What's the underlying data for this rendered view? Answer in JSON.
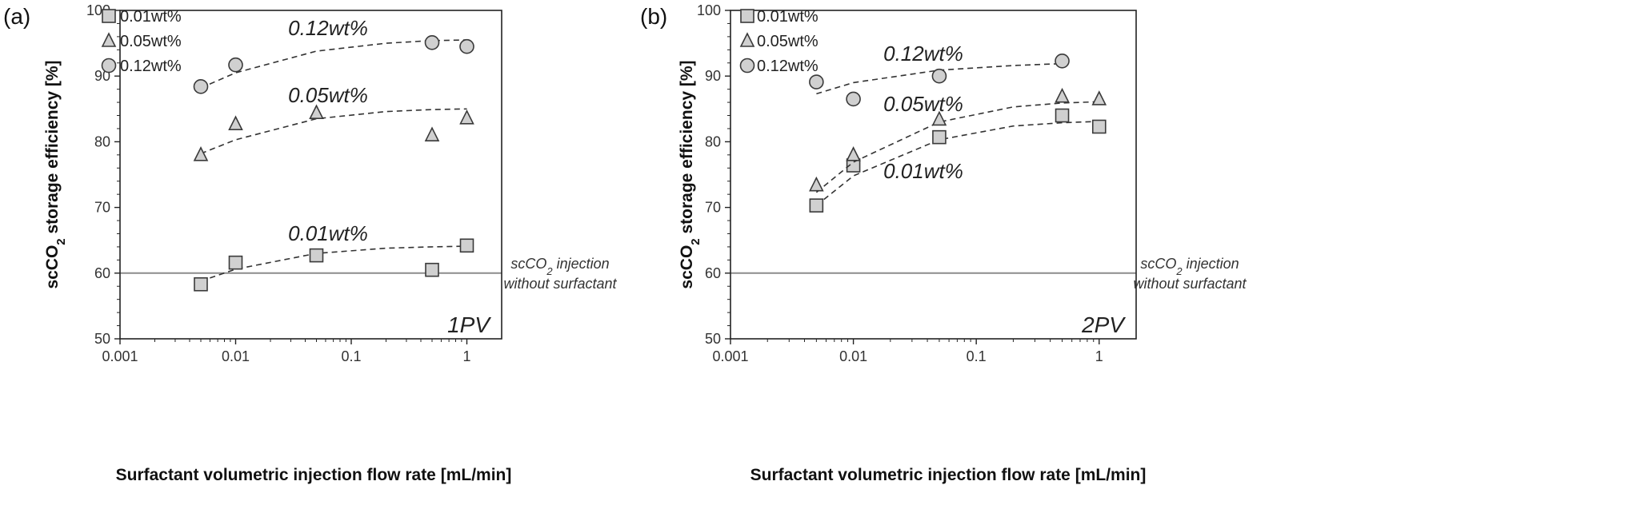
{
  "chart_data": [
    {
      "type": "scatter",
      "panel": "(a)",
      "pv_label": "1PV",
      "xlabel": "Surfactant volumetric injection flow rate [mL/min]",
      "ylabel_parts": [
        "scCO",
        "2",
        " storage efficiency [%]"
      ],
      "x_scale": "log",
      "xlim": [
        0.001,
        2
      ],
      "ylim": [
        50,
        100
      ],
      "x_ticks": [
        "0.001",
        "0.01",
        "0.1",
        "1"
      ],
      "y_ticks": [
        "50",
        "60",
        "70",
        "80",
        "90",
        "100"
      ],
      "reference_line": {
        "y": 60,
        "label_line1_parts": [
          "scCO",
          "2",
          " injection"
        ],
        "label_line2": "without surfactant"
      },
      "legend": [
        "0.01wt%",
        "0.05wt%",
        "0.12wt%"
      ],
      "series": [
        {
          "name": "0.01wt%",
          "marker": "square",
          "x": [
            0.005,
            0.01,
            0.05,
            0.5,
            1
          ],
          "y": [
            58.3,
            61.6,
            62.7,
            60.5,
            64.2
          ],
          "fit_label": "0.01wt%",
          "fit": [
            [
              0.005,
              58.8
            ],
            [
              0.01,
              60.6
            ],
            [
              0.05,
              63.0
            ],
            [
              0.2,
              63.8
            ],
            [
              0.5,
              64.0
            ],
            [
              1,
              64.1
            ]
          ]
        },
        {
          "name": "0.05wt%",
          "marker": "triangle",
          "x": [
            0.005,
            0.01,
            0.05,
            0.5,
            1
          ],
          "y": [
            78.0,
            82.7,
            84.4,
            81.0,
            83.6
          ],
          "fit_label": "0.05wt%",
          "fit": [
            [
              0.005,
              78.2
            ],
            [
              0.01,
              80.3
            ],
            [
              0.05,
              83.5
            ],
            [
              0.2,
              84.6
            ],
            [
              0.5,
              84.9
            ],
            [
              1,
              85.0
            ]
          ]
        },
        {
          "name": "0.12wt%",
          "marker": "circle",
          "x": [
            0.005,
            0.01,
            0.5,
            1
          ],
          "y": [
            88.4,
            91.7,
            95.1,
            94.5
          ],
          "fit_label": "0.12wt%",
          "fit": [
            [
              0.005,
              88.2
            ],
            [
              0.01,
              90.5
            ],
            [
              0.05,
              93.8
            ],
            [
              0.2,
              95.0
            ],
            [
              0.5,
              95.4
            ],
            [
              1,
              95.5
            ]
          ]
        }
      ]
    },
    {
      "type": "scatter",
      "panel": "(b)",
      "pv_label": "2PV",
      "xlabel": "Surfactant volumetric injection flow rate [mL/min]",
      "ylabel_parts": [
        "scCO",
        "2",
        " storage efficiency [%]"
      ],
      "x_scale": "log",
      "xlim": [
        0.001,
        2
      ],
      "ylim": [
        50,
        100
      ],
      "x_ticks": [
        "0.001",
        "0.01",
        "0.1",
        "1"
      ],
      "y_ticks": [
        "50",
        "60",
        "70",
        "80",
        "90",
        "100"
      ],
      "reference_line": {
        "y": 60,
        "label_line1_parts": [
          "scCO",
          "2",
          " injection"
        ],
        "label_line2": "without surfactant"
      },
      "legend": [
        "0.01wt%",
        "0.05wt%",
        "0.12wt%"
      ],
      "series": [
        {
          "name": "0.01wt%",
          "marker": "square",
          "x": [
            0.005,
            0.01,
            0.05,
            0.5,
            1
          ],
          "y": [
            70.3,
            76.4,
            80.7,
            84.0,
            82.3
          ],
          "fit_label": "0.01wt%",
          "fit": [
            [
              0.005,
              70.3
            ],
            [
              0.01,
              74.8
            ],
            [
              0.05,
              80.3
            ],
            [
              0.2,
              82.4
            ],
            [
              0.5,
              82.9
            ],
            [
              1,
              83.1
            ]
          ]
        },
        {
          "name": "0.05wt%",
          "marker": "triangle",
          "x": [
            0.005,
            0.01,
            0.05,
            0.5,
            1
          ],
          "y": [
            73.4,
            78.0,
            83.4,
            86.9,
            86.5
          ],
          "fit_label": "0.05wt%",
          "fit": [
            [
              0.005,
              72.3
            ],
            [
              0.01,
              76.9
            ],
            [
              0.05,
              83.0
            ],
            [
              0.2,
              85.3
            ],
            [
              0.5,
              85.9
            ],
            [
              1,
              86.1
            ]
          ]
        },
        {
          "name": "0.12wt%",
          "marker": "circle",
          "x": [
            0.005,
            0.01,
            0.05,
            0.5
          ],
          "y": [
            89.1,
            86.5,
            90.0,
            92.3
          ],
          "fit_label": "0.12wt%",
          "fit": [
            [
              0.005,
              87.3
            ],
            [
              0.01,
              89.0
            ],
            [
              0.05,
              90.9
            ],
            [
              0.2,
              91.6
            ],
            [
              0.5,
              91.9
            ]
          ]
        }
      ]
    }
  ]
}
